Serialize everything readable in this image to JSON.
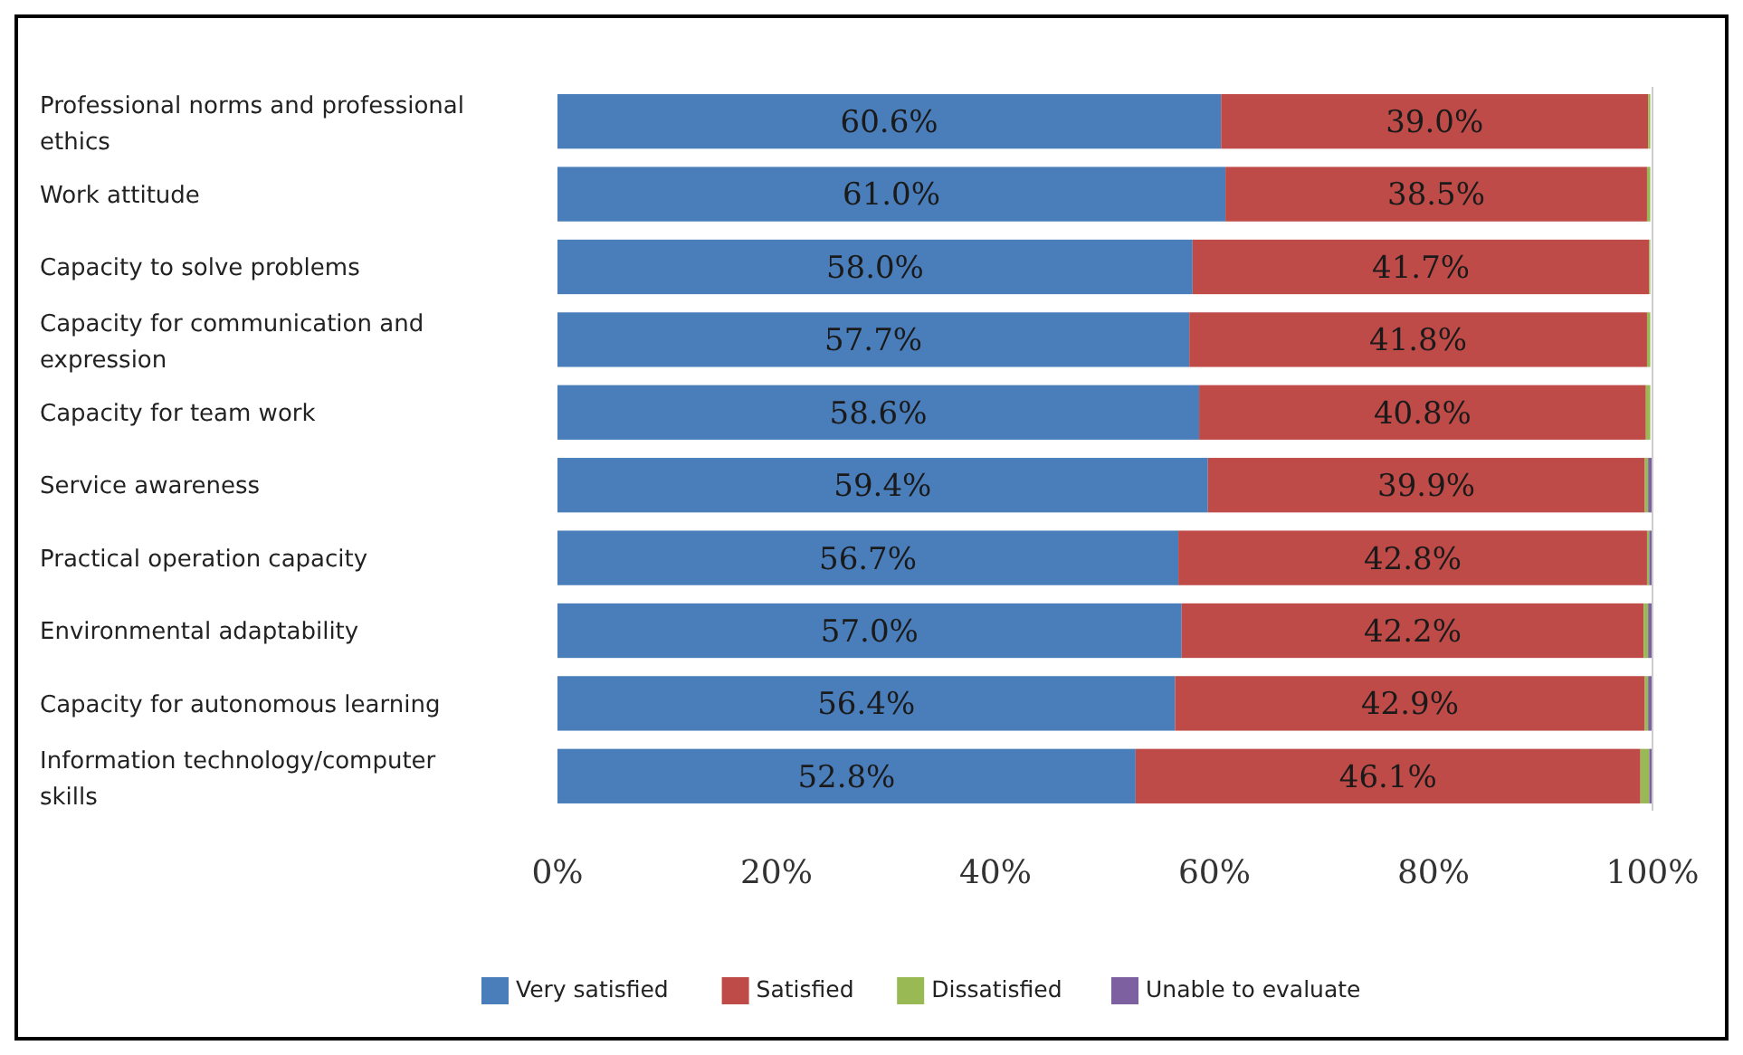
{
  "chart_data": {
    "type": "bar",
    "orientation": "horizontal",
    "stacked": true,
    "categories": [
      "Professional norms and professional ethics",
      "Work attitude",
      "Capacity to solve problems",
      "Capacity for communication and expression",
      "Capacity for team work",
      "Service awareness",
      "Practical operation capacity",
      "Environmental adaptability",
      "Capacity for autonomous learning",
      "Information technology/computer skills"
    ],
    "series": [
      {
        "name": "Very satisfied",
        "color": "#4a7ebb",
        "values": [
          60.6,
          61.0,
          58.0,
          57.7,
          58.6,
          59.4,
          56.7,
          57.0,
          56.4,
          52.8
        ],
        "value_labels": [
          "60.6%",
          "61.0%",
          "58.0%",
          "57.7%",
          "58.6%",
          "59.4%",
          "56.7%",
          "57.0%",
          "56.4%",
          "52.8%"
        ]
      },
      {
        "name": "Satisfied",
        "color": "#be4b48",
        "values": [
          39.0,
          38.5,
          41.7,
          41.8,
          40.8,
          39.9,
          42.8,
          42.2,
          42.9,
          46.1
        ],
        "value_labels": [
          "39.0%",
          "38.5%",
          "41.7%",
          "41.8%",
          "40.8%",
          "39.9%",
          "42.8%",
          "42.2%",
          "42.9%",
          "46.1%"
        ]
      },
      {
        "name": "Dissatisfied",
        "color": "#98b954",
        "values": [
          0.2,
          0.3,
          0.1,
          0.3,
          0.4,
          0.3,
          0.2,
          0.4,
          0.3,
          0.8
        ]
      },
      {
        "name": "Unable to evaluate",
        "color": "#7d60a0",
        "values": [
          null,
          null,
          null,
          null,
          null,
          0.4,
          0.3,
          0.4,
          0.4,
          0.3
        ]
      }
    ],
    "xlim": [
      0,
      100
    ],
    "xticks": [
      {
        "value": 0,
        "label": "0%"
      },
      {
        "value": 20,
        "label": "20%"
      },
      {
        "value": 40,
        "label": "40%"
      },
      {
        "value": 60,
        "label": "60%"
      },
      {
        "value": 80,
        "label": "80%"
      },
      {
        "value": 100,
        "label": "100%"
      }
    ],
    "legend": "bottom",
    "grid": false
  }
}
